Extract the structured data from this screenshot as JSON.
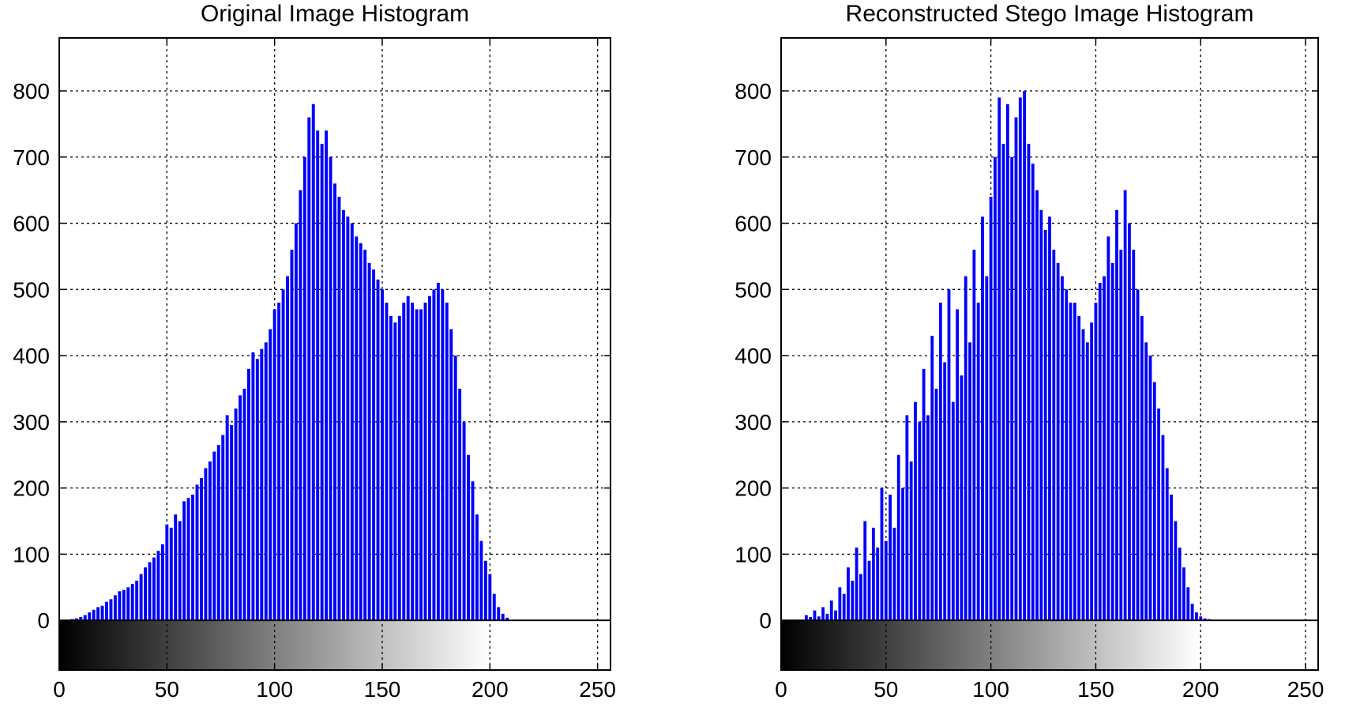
{
  "chart_data": [
    {
      "type": "bar",
      "title": "Original Image Histogram",
      "xlabel": "",
      "ylabel": "",
      "xlim": [
        0,
        256
      ],
      "ylim": [
        -75,
        880
      ],
      "xticks": [
        0,
        50,
        100,
        150,
        200,
        250
      ],
      "yticks": [
        0,
        100,
        200,
        300,
        400,
        500,
        600,
        700,
        800
      ],
      "grid": true,
      "bar_color": "#0000ff",
      "gradient_strip": {
        "from_value": 0,
        "to_value": 200,
        "from_color": "#000000",
        "to_color": "#ffffff"
      },
      "bin_width": 2,
      "x": [
        6,
        8,
        10,
        12,
        14,
        16,
        18,
        20,
        22,
        24,
        26,
        28,
        30,
        32,
        34,
        36,
        38,
        40,
        42,
        44,
        46,
        48,
        50,
        52,
        54,
        56,
        58,
        60,
        62,
        64,
        66,
        68,
        70,
        72,
        74,
        76,
        78,
        80,
        82,
        84,
        86,
        88,
        90,
        92,
        94,
        96,
        98,
        100,
        102,
        104,
        106,
        108,
        110,
        112,
        114,
        116,
        118,
        120,
        122,
        124,
        126,
        128,
        130,
        132,
        134,
        136,
        138,
        140,
        142,
        144,
        146,
        148,
        150,
        152,
        154,
        156,
        158,
        160,
        162,
        164,
        166,
        168,
        170,
        172,
        174,
        176,
        178,
        180,
        182,
        184,
        186,
        188,
        190,
        192,
        194,
        196,
        198,
        200,
        202,
        204,
        206,
        208,
        210
      ],
      "values": [
        2,
        3,
        5,
        8,
        12,
        16,
        20,
        22,
        28,
        32,
        38,
        44,
        46,
        50,
        55,
        60,
        70,
        80,
        88,
        95,
        105,
        115,
        145,
        140,
        160,
        150,
        180,
        185,
        190,
        205,
        215,
        230,
        240,
        255,
        265,
        280,
        310,
        295,
        320,
        340,
        350,
        380,
        405,
        395,
        410,
        420,
        440,
        470,
        480,
        500,
        520,
        560,
        600,
        650,
        700,
        760,
        780,
        740,
        720,
        740,
        700,
        660,
        640,
        620,
        610,
        600,
        580,
        570,
        560,
        540,
        530,
        515,
        500,
        480,
        460,
        450,
        460,
        480,
        490,
        480,
        470,
        470,
        480,
        490,
        500,
        510,
        500,
        480,
        440,
        400,
        350,
        300,
        250,
        210,
        160,
        120,
        90,
        70,
        40,
        20,
        10,
        4,
        1
      ]
    },
    {
      "type": "bar",
      "title": "Reconstructed Stego Image Histogram",
      "xlabel": "",
      "ylabel": "",
      "xlim": [
        0,
        256
      ],
      "ylim": [
        -75,
        880
      ],
      "xticks": [
        0,
        50,
        100,
        150,
        200,
        250
      ],
      "yticks": [
        0,
        100,
        200,
        300,
        400,
        500,
        600,
        700,
        800
      ],
      "grid": true,
      "bar_color": "#0000ff",
      "gradient_strip": {
        "from_value": 0,
        "to_value": 200,
        "from_color": "#000000",
        "to_color": "#ffffff"
      },
      "bin_width": 2,
      "x": [
        12,
        14,
        16,
        18,
        20,
        22,
        24,
        26,
        28,
        30,
        32,
        34,
        36,
        38,
        40,
        42,
        44,
        46,
        48,
        50,
        52,
        54,
        56,
        58,
        60,
        62,
        64,
        66,
        68,
        70,
        72,
        74,
        76,
        78,
        80,
        82,
        84,
        86,
        88,
        90,
        92,
        94,
        96,
        98,
        100,
        102,
        104,
        106,
        108,
        110,
        112,
        114,
        116,
        118,
        120,
        122,
        124,
        126,
        128,
        130,
        132,
        134,
        136,
        138,
        140,
        142,
        144,
        146,
        148,
        150,
        152,
        154,
        156,
        158,
        160,
        162,
        164,
        166,
        168,
        170,
        172,
        174,
        176,
        178,
        180,
        182,
        184,
        186,
        188,
        190,
        192,
        194,
        196,
        198,
        200,
        202,
        204,
        206,
        208,
        210
      ],
      "values": [
        8,
        5,
        15,
        6,
        20,
        10,
        30,
        15,
        50,
        40,
        80,
        60,
        110,
        70,
        150,
        90,
        140,
        110,
        200,
        120,
        190,
        140,
        250,
        200,
        310,
        240,
        330,
        300,
        380,
        310,
        430,
        350,
        480,
        390,
        500,
        330,
        470,
        370,
        520,
        420,
        560,
        480,
        610,
        520,
        640,
        700,
        790,
        720,
        780,
        700,
        760,
        790,
        800,
        720,
        690,
        650,
        620,
        590,
        610,
        560,
        540,
        520,
        500,
        480,
        480,
        460,
        440,
        420,
        450,
        480,
        510,
        520,
        580,
        540,
        620,
        560,
        650,
        600,
        560,
        500,
        460,
        420,
        400,
        360,
        320,
        280,
        230,
        190,
        150,
        110,
        80,
        50,
        25,
        12,
        6,
        3,
        2,
        1,
        1,
        1
      ]
    }
  ]
}
